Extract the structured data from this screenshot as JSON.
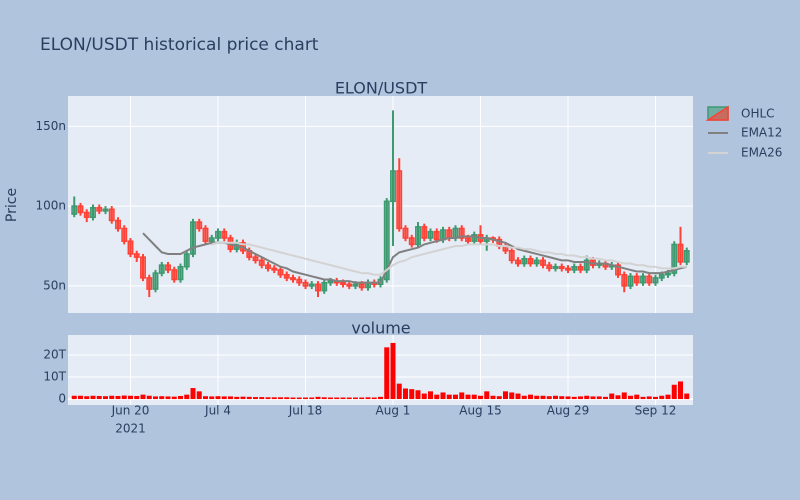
{
  "chart_data": {
    "type": "candlestick",
    "title": "ELON/USDT historical price chart",
    "subtitle": "ELON/USDT",
    "ylabel": "Price",
    "name": "OHLC",
    "increasing_color": "#3d9970",
    "decreasing_color": "#ff4136",
    "legend": "right",
    "grid": true,
    "x": [
      "2021-06-11",
      "2021-06-12",
      "2021-06-13",
      "2021-06-14",
      "2021-06-15",
      "2021-06-16",
      "2021-06-17",
      "2021-06-18",
      "2021-06-19",
      "2021-06-20",
      "2021-06-21",
      "2021-06-22",
      "2021-06-23",
      "2021-06-24",
      "2021-06-25",
      "2021-06-26",
      "2021-06-27",
      "2021-06-28",
      "2021-06-29",
      "2021-06-30",
      "2021-07-01",
      "2021-07-02",
      "2021-07-03",
      "2021-07-04",
      "2021-07-05",
      "2021-07-06",
      "2021-07-07",
      "2021-07-08",
      "2021-07-09",
      "2021-07-10",
      "2021-07-11",
      "2021-07-12",
      "2021-07-13",
      "2021-07-14",
      "2021-07-15",
      "2021-07-16",
      "2021-07-17",
      "2021-07-18",
      "2021-07-19",
      "2021-07-20",
      "2021-07-21",
      "2021-07-22",
      "2021-07-23",
      "2021-07-24",
      "2021-07-25",
      "2021-07-26",
      "2021-07-27",
      "2021-07-28",
      "2021-07-29",
      "2021-07-30",
      "2021-07-31",
      "2021-08-01",
      "2021-08-02",
      "2021-08-03",
      "2021-08-04",
      "2021-08-05",
      "2021-08-06",
      "2021-08-07",
      "2021-08-08",
      "2021-08-09",
      "2021-08-10",
      "2021-08-11",
      "2021-08-12",
      "2021-08-13",
      "2021-08-14",
      "2021-08-15",
      "2021-08-16",
      "2021-08-17",
      "2021-08-18",
      "2021-08-19",
      "2021-08-20",
      "2021-08-21",
      "2021-08-22",
      "2021-08-23",
      "2021-08-24",
      "2021-08-25",
      "2021-08-26",
      "2021-08-27",
      "2021-08-28",
      "2021-08-29",
      "2021-08-30",
      "2021-08-31",
      "2021-09-01",
      "2021-09-02",
      "2021-09-03",
      "2021-09-04",
      "2021-09-05",
      "2021-09-06",
      "2021-09-07",
      "2021-09-08",
      "2021-09-09",
      "2021-09-10",
      "2021-09-11",
      "2021-09-12",
      "2021-09-13",
      "2021-09-14",
      "2021-09-15",
      "2021-09-16",
      "2021-09-17"
    ],
    "xlim": [
      "2021-06-10",
      "2021-09-18"
    ],
    "xticks": [
      {
        "value": "2021-06-20",
        "label": "Jun 20"
      },
      {
        "value": "2021-07-04",
        "label": "Jul 4"
      },
      {
        "value": "2021-07-18",
        "label": "Jul 18"
      },
      {
        "value": "2021-08-01",
        "label": "Aug 1"
      },
      {
        "value": "2021-08-15",
        "label": "Aug 15"
      },
      {
        "value": "2021-08-29",
        "label": "Aug 29"
      },
      {
        "value": "2021-09-12",
        "label": "Sep 12"
      }
    ],
    "x_year": "2021",
    "ylim": [
      3.3e-08,
      1.69e-07
    ],
    "yticks": [
      {
        "value": 5e-08,
        "label": "50n"
      },
      {
        "value": 1e-07,
        "label": "100n"
      },
      {
        "value": 1.5e-07,
        "label": "150n"
      }
    ],
    "open": [
      9.5e-08,
      1e-07,
      9.6e-08,
      9.3e-08,
      9.9e-08,
      9.7e-08,
      9.8e-08,
      9.1e-08,
      8.6e-08,
      7.8e-08,
      7e-08,
      6.8e-08,
      5.5e-08,
      4.8e-08,
      5.8e-08,
      6.3e-08,
      6e-08,
      5.4e-08,
      6.2e-08,
      7e-08,
      9e-08,
      8.6e-08,
      7.8e-08,
      8e-08,
      8.4e-08,
      8e-08,
      7.3e-08,
      7.7e-08,
      7.2e-08,
      6.8e-08,
      6.6e-08,
      6.3e-08,
      6.1e-08,
      6e-08,
      5.7e-08,
      5.5e-08,
      5.4e-08,
      5.2e-08,
      5e-08,
      5.1e-08,
      4.7e-08,
      5.2e-08,
      5.3e-08,
      5.2e-08,
      5.1e-08,
      5e-08,
      5.1e-08,
      4.9e-08,
      5.2e-08,
      5.1e-08,
      5.4e-08,
      1.03e-07,
      1.22e-07,
      8.6e-08,
      8e-08,
      7.6e-08,
      8.7e-08,
      8e-08,
      8.4e-08,
      7.9e-08,
      8.5e-08,
      8e-08,
      8.6e-08,
      8e-08,
      7.8e-08,
      8.2e-08,
      7.8e-08,
      8e-08,
      7.9e-08,
      7.5e-08,
      7.2e-08,
      6.6e-08,
      6.4e-08,
      6.7e-08,
      6.4e-08,
      6.6e-08,
      6.3e-08,
      6.1e-08,
      6.2e-08,
      6.1e-08,
      6e-08,
      6.2e-08,
      6e-08,
      6.6e-08,
      6.3e-08,
      6.4e-08,
      6.2e-08,
      6.3e-08,
      5.7e-08,
      5e-08,
      5.6e-08,
      5.2e-08,
      5.6e-08,
      5.2e-08,
      5.5e-08,
      5.7e-08,
      5.8e-08,
      7.6e-08,
      6.5e-08
    ],
    "high": [
      1.06e-07,
      1.02e-07,
      9.8e-08,
      1.01e-07,
      1.01e-07,
      1e-07,
      1e-07,
      9.3e-08,
      8.8e-08,
      8e-08,
      7.2e-08,
      7e-08,
      5.7e-08,
      6e-08,
      6.5e-08,
      6.5e-08,
      6.2e-08,
      6.4e-08,
      7.2e-08,
      9.2e-08,
      9.2e-08,
      8.8e-08,
      8.2e-08,
      8.6e-08,
      8.6e-08,
      8.2e-08,
      7.9e-08,
      7.9e-08,
      7.4e-08,
      7e-08,
      6.8e-08,
      6.5e-08,
      6.3e-08,
      6.2e-08,
      5.9e-08,
      5.7e-08,
      5.6e-08,
      5.4e-08,
      5.3e-08,
      5.3e-08,
      5.4e-08,
      5.5e-08,
      5.5e-08,
      5.4e-08,
      5.3e-08,
      5.3e-08,
      5.3e-08,
      5.4e-08,
      5.4e-08,
      5.6e-08,
      1.05e-07,
      1.6e-07,
      1.3e-07,
      8.8e-08,
      8.2e-08,
      9e-08,
      8.9e-08,
      8.6e-08,
      8.6e-08,
      8.7e-08,
      8.7e-08,
      8.8e-08,
      8.8e-08,
      8.2e-08,
      8.4e-08,
      8.8e-08,
      8.2e-08,
      8.1e-08,
      8.1e-08,
      7.7e-08,
      7.4e-08,
      6.8e-08,
      6.9e-08,
      6.9e-08,
      6.8e-08,
      6.8e-08,
      6.5e-08,
      6.4e-08,
      6.4e-08,
      6.3e-08,
      6.4e-08,
      6.4e-08,
      6.9e-08,
      6.8e-08,
      6.6e-08,
      6.6e-08,
      6.5e-08,
      6.5e-08,
      5.9e-08,
      5.8e-08,
      5.8e-08,
      5.8e-08,
      5.8e-08,
      5.7e-08,
      5.9e-08,
      6e-08,
      7.8e-08,
      8.7e-08,
      7.4e-08
    ],
    "low": [
      9.3e-08,
      9.4e-08,
      9e-08,
      9.1e-08,
      9.5e-08,
      9.5e-08,
      8.9e-08,
      8.4e-08,
      7.6e-08,
      6.8e-08,
      6.5e-08,
      5.3e-08,
      4.3e-08,
      4.6e-08,
      5.6e-08,
      5.8e-08,
      5.2e-08,
      5.2e-08,
      6e-08,
      6.8e-08,
      8.4e-08,
      7.6e-08,
      7.6e-08,
      7.8e-08,
      7.8e-08,
      7.1e-08,
      7.1e-08,
      7e-08,
      6.6e-08,
      6.4e-08,
      6.1e-08,
      5.9e-08,
      5.8e-08,
      5.5e-08,
      5.3e-08,
      5.2e-08,
      5e-08,
      4.8e-08,
      4.8e-08,
      4.3e-08,
      4.5e-08,
      5e-08,
      5e-08,
      4.9e-08,
      4.8e-08,
      4.8e-08,
      4.7e-08,
      4.7e-08,
      4.9e-08,
      4.9e-08,
      5.2e-08,
      7.5e-08,
      8.4e-08,
      7.8e-08,
      7.4e-08,
      7.4e-08,
      7.8e-08,
      7.8e-08,
      7.7e-08,
      7.7e-08,
      7.8e-08,
      7.8e-08,
      7.8e-08,
      7.6e-08,
      7.6e-08,
      7.6e-08,
      7.2e-08,
      7.7e-08,
      7.3e-08,
      7e-08,
      6.4e-08,
      6.2e-08,
      6.2e-08,
      6.2e-08,
      6.2e-08,
      6.1e-08,
      5.9e-08,
      5.9e-08,
      5.9e-08,
      5.8e-08,
      5.8e-08,
      5.8e-08,
      5.8e-08,
      6.1e-08,
      6.1e-08,
      6e-08,
      6e-08,
      5.5e-08,
      4.6e-08,
      4.8e-08,
      5e-08,
      5e-08,
      5e-08,
      5e-08,
      5.3e-08,
      5.5e-08,
      5.6e-08,
      6.3e-08,
      6.3e-08
    ],
    "close": [
      1e-07,
      9.6e-08,
      9.3e-08,
      9.9e-08,
      9.7e-08,
      9.8e-08,
      9.1e-08,
      8.6e-08,
      7.8e-08,
      7e-08,
      6.8e-08,
      5.5e-08,
      4.8e-08,
      5.8e-08,
      6.3e-08,
      6e-08,
      5.4e-08,
      6.2e-08,
      7e-08,
      9e-08,
      8.6e-08,
      7.8e-08,
      8e-08,
      8.4e-08,
      8e-08,
      7.3e-08,
      7.7e-08,
      7.2e-08,
      6.8e-08,
      6.6e-08,
      6.3e-08,
      6.1e-08,
      6e-08,
      5.7e-08,
      5.5e-08,
      5.4e-08,
      5.2e-08,
      5e-08,
      5.1e-08,
      4.7e-08,
      5.2e-08,
      5.3e-08,
      5.2e-08,
      5.1e-08,
      5e-08,
      5.1e-08,
      4.9e-08,
      5.2e-08,
      5.1e-08,
      5.4e-08,
      1.03e-07,
      1.22e-07,
      8.6e-08,
      8e-08,
      7.6e-08,
      8.7e-08,
      8e-08,
      8.4e-08,
      7.9e-08,
      8.5e-08,
      8e-08,
      8.6e-08,
      8e-08,
      7.8e-08,
      8.2e-08,
      7.8e-08,
      8e-08,
      7.9e-08,
      7.5e-08,
      7.2e-08,
      6.6e-08,
      6.4e-08,
      6.7e-08,
      6.4e-08,
      6.6e-08,
      6.3e-08,
      6.1e-08,
      6.2e-08,
      6.1e-08,
      6e-08,
      6.2e-08,
      6e-08,
      6.6e-08,
      6.3e-08,
      6.4e-08,
      6.2e-08,
      6.3e-08,
      5.7e-08,
      5e-08,
      5.6e-08,
      5.2e-08,
      5.6e-08,
      5.2e-08,
      5.5e-08,
      5.7e-08,
      5.8e-08,
      7.6e-08,
      6.5e-08,
      7.2e-08
    ],
    "series": [
      {
        "name": "EMA12",
        "color": "#808080",
        "values": [
          null,
          null,
          null,
          null,
          null,
          null,
          null,
          null,
          null,
          null,
          null,
          8.3e-08,
          7.9e-08,
          7.5e-08,
          7.1e-08,
          7e-08,
          7e-08,
          7e-08,
          7.2e-08,
          7.4e-08,
          7.5e-08,
          7.6e-08,
          7.7e-08,
          7.7e-08,
          7.7e-08,
          7.6e-08,
          7.5e-08,
          7.4e-08,
          7.2e-08,
          7e-08,
          6.8e-08,
          6.6e-08,
          6.4e-08,
          6.2e-08,
          6.1e-08,
          5.9e-08,
          5.8e-08,
          5.7e-08,
          5.6e-08,
          5.5e-08,
          5.4e-08,
          5.4e-08,
          5.3e-08,
          5.3e-08,
          5.3e-08,
          5.2e-08,
          5.2e-08,
          5.2e-08,
          5.2e-08,
          5.2e-08,
          6e-08,
          6.8e-08,
          7.1e-08,
          7.2e-08,
          7.3e-08,
          7.4e-08,
          7.6e-08,
          7.7e-08,
          7.8e-08,
          7.9e-08,
          8e-08,
          8e-08,
          8.1e-08,
          8.1e-08,
          8.1e-08,
          8e-08,
          8e-08,
          7.9e-08,
          7.8e-08,
          7.7e-08,
          7.5e-08,
          7.3e-08,
          7.2e-08,
          7.1e-08,
          7e-08,
          6.9e-08,
          6.8e-08,
          6.7e-08,
          6.6e-08,
          6.6e-08,
          6.5e-08,
          6.5e-08,
          6.5e-08,
          6.4e-08,
          6.4e-08,
          6.4e-08,
          6.3e-08,
          6.2e-08,
          6.1e-08,
          6e-08,
          5.9e-08,
          5.9e-08,
          5.8e-08,
          5.8e-08,
          5.8e-08,
          5.9e-08,
          6e-08,
          6.1e-08,
          6.2e-08
        ]
      },
      {
        "name": "EMA26",
        "color": "#d3d3d3",
        "values": [
          null,
          null,
          null,
          null,
          null,
          null,
          null,
          null,
          null,
          null,
          null,
          null,
          null,
          null,
          null,
          null,
          null,
          null,
          null,
          null,
          null,
          null,
          7.6e-08,
          7.7e-08,
          7.7e-08,
          7.7e-08,
          7.7e-08,
          7.6e-08,
          7.6e-08,
          7.5e-08,
          7.4e-08,
          7.3e-08,
          7.2e-08,
          7.1e-08,
          7e-08,
          6.9e-08,
          6.8e-08,
          6.7e-08,
          6.6e-08,
          6.5e-08,
          6.4e-08,
          6.3e-08,
          6.2e-08,
          6.1e-08,
          6e-08,
          5.9e-08,
          5.8e-08,
          5.8e-08,
          5.7e-08,
          5.7e-08,
          6e-08,
          6.3e-08,
          6.5e-08,
          6.6e-08,
          6.8e-08,
          6.9e-08,
          7e-08,
          7.1e-08,
          7.2e-08,
          7.3e-08,
          7.4e-08,
          7.5e-08,
          7.5e-08,
          7.6e-08,
          7.6e-08,
          7.6e-08,
          7.6e-08,
          7.6e-08,
          7.5e-08,
          7.5e-08,
          7.4e-08,
          7.4e-08,
          7.3e-08,
          7.3e-08,
          7.2e-08,
          7.1e-08,
          7.1e-08,
          7e-08,
          7e-08,
          6.9e-08,
          6.9e-08,
          6.8e-08,
          6.8e-08,
          6.7e-08,
          6.7e-08,
          6.6e-08,
          6.6e-08,
          6.5e-08,
          6.4e-08,
          6.4e-08,
          6.3e-08,
          6.3e-08,
          6.2e-08,
          6.2e-08,
          6.1e-08,
          6.1e-08,
          6.1e-08,
          6.2e-08,
          6.2e-08
        ]
      }
    ],
    "volume": {
      "type": "bar",
      "title": "volume",
      "color": "#ff0000",
      "ylim": [
        -2700000000000.0,
        29100000000000.0
      ],
      "yticks": [
        0,
        {
          "value": 10000000000000.0,
          "label": "10T"
        },
        {
          "value": 20000000000000.0,
          "label": "20T"
        }
      ],
      "values": [
        1500000000000.0,
        1500000000000.0,
        1300000000000.0,
        1500000000000.0,
        1400000000000.0,
        1300000000000.0,
        1500000000000.0,
        1400000000000.0,
        1600000000000.0,
        1500000000000.0,
        1400000000000.0,
        2000000000000.0,
        1500000000000.0,
        1200000000000.0,
        1300000000000.0,
        1200000000000.0,
        1100000000000.0,
        1400000000000.0,
        2000000000000.0,
        5000000000000.0,
        3500000000000.0,
        1300000000000.0,
        1200000000000.0,
        1300000000000.0,
        1200000000000.0,
        1200000000000.0,
        1000000000000.0,
        1100000000000.0,
        1000000000000.0,
        900000000000.0,
        900000000000.0,
        800000000000.0,
        800000000000.0,
        800000000000.0,
        800000000000.0,
        700000000000.0,
        700000000000.0,
        700000000000.0,
        700000000000.0,
        1000000000000.0,
        800000000000.0,
        700000000000.0,
        700000000000.0,
        700000000000.0,
        700000000000.0,
        700000000000.0,
        700000000000.0,
        800000000000.0,
        700000000000.0,
        1000000000000.0,
        23500000000000.0,
        25500000000000.0,
        7000000000000.0,
        4800000000000.0,
        4500000000000.0,
        4000000000000.0,
        2500000000000.0,
        3500000000000.0,
        2000000000000.0,
        3000000000000.0,
        2000000000000.0,
        2000000000000.0,
        3000000000000.0,
        2000000000000.0,
        2000000000000.0,
        1500000000000.0,
        3500000000000.0,
        1500000000000.0,
        1300000000000.0,
        3500000000000.0,
        3000000000000.0,
        2500000000000.0,
        1500000000000.0,
        2000000000000.0,
        1500000000000.0,
        1500000000000.0,
        1300000000000.0,
        1500000000000.0,
        1300000000000.0,
        1200000000000.0,
        1000000000000.0,
        1200000000000.0,
        1500000000000.0,
        1200000000000.0,
        1200000000000.0,
        1000000000000.0,
        2500000000000.0,
        1700000000000.0,
        3000000000000.0,
        1500000000000.0,
        2000000000000.0,
        1000000000000.0,
        1200000000000.0,
        1000000000000.0,
        1500000000000.0,
        2000000000000.0,
        6500000000000.0,
        8000000000000.0,
        2500000000000.0
      ]
    }
  }
}
